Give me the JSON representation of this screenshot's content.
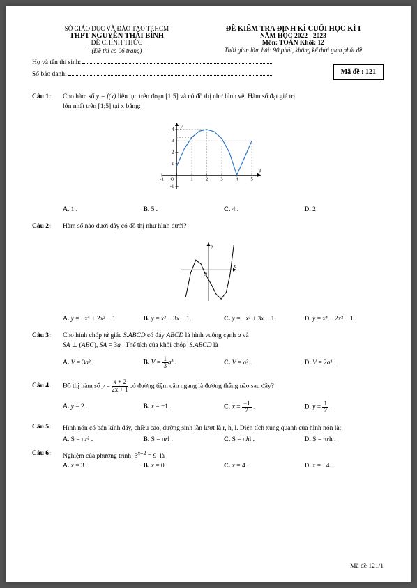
{
  "header": {
    "dept": "SỞ GIÁO DỤC VÀ ĐÀO TẠO TP.HCM",
    "school": "THPT NGUYỄN THÁI BÌNH",
    "official": "ĐỀ CHÍNH THỨC",
    "pages_note": "(Đề thi có 06 trang)",
    "exam_title": "ĐỀ KIỂM TRA ĐỊNH KÌ CUỐI HỌC KÌ I",
    "year": "NĂM HỌC 2022 - 2023",
    "subject": "Môn:  TOÁN   Khối: 12",
    "duration": "Thời gian làm bài:  90 phút, không kể thời gian phát đề",
    "name_label": "Họ và tên thí sinh:",
    "id_label": "Số báo danh:",
    "code_label": "Mã đề : 121"
  },
  "questions": [
    {
      "label": "Câu 1:",
      "text1": "Cho hàm số ",
      "math1": "y = f(x)",
      "text2": " liên tục trên đoạn ",
      "math2": "[1;5]",
      "text3": " và có đồ thị như hình vẽ. Hàm số đạt giá trị",
      "line2a": "lớn nhất trên ",
      "line2b": "[1;5]",
      "line2c": " tại x bằng:",
      "choices": [
        "A. 1 .",
        "B. 5 .",
        "C. 4 .",
        "D. 2"
      ],
      "chart": {
        "bg": "#ffffff",
        "axis_color": "#000000",
        "curve_color": "#1f6fc4",
        "line_color": "#1f6fc4",
        "dash_color": "#888888",
        "xrange": [
          -1,
          5.6
        ],
        "yrange": [
          -1.2,
          4.6
        ],
        "xticks": [
          -1,
          0,
          1,
          2,
          3,
          4,
          5
        ],
        "yticks": [
          -1,
          1,
          2,
          3,
          4
        ],
        "curve_pts": [
          [
            0,
            0.8
          ],
          [
            0.5,
            2.3
          ],
          [
            1,
            3.3
          ],
          [
            1.5,
            3.85
          ],
          [
            2,
            4
          ],
          [
            2.5,
            3.8
          ],
          [
            3,
            3.2
          ],
          [
            3.5,
            2
          ],
          [
            4,
            0
          ]
        ],
        "line_seg": [
          [
            4,
            0
          ],
          [
            5,
            3
          ]
        ],
        "dashes": [
          [
            [
              1,
              0
            ],
            [
              1,
              3.3
            ]
          ],
          [
            [
              1,
              3.3
            ],
            [
              0,
              3.3
            ]
          ],
          [
            [
              2,
              0
            ],
            [
              2,
              4
            ]
          ],
          [
            [
              2,
              4
            ],
            [
              0,
              4
            ]
          ],
          [
            [
              3,
              0
            ],
            [
              3,
              3.2
            ]
          ],
          [
            [
              5,
              0
            ],
            [
              5,
              3
            ]
          ],
          [
            [
              5,
              3
            ],
            [
              0,
              3
            ]
          ]
        ],
        "labels": {
          "x": "x̄",
          "y": "y",
          "O_pos": [
            0,
            0
          ]
        }
      }
    },
    {
      "label": "Câu 2:",
      "text1": "Hàm số nào dưới đây có đồ thị như hình dưới?",
      "choices": [
        "A. y = −x⁴ + 2x² − 1.",
        "B. y = x³ − 3x − 1.",
        "C. y = −x³ + 3x − 1.",
        "D. y = x⁴ − 2x² − 1."
      ],
      "chart": {
        "axis_color": "#000000",
        "curve_color": "#000000",
        "xrange": [
          -2.2,
          2.2
        ],
        "yrange": [
          -3.2,
          2.8
        ],
        "curve_pts": [
          [
            -1.8,
            -2.8
          ],
          [
            -1.4,
            -0.3
          ],
          [
            -1,
            1
          ],
          [
            -0.6,
            0.6
          ],
          [
            -0.3,
            -0.3
          ],
          [
            0,
            -1
          ],
          [
            0.3,
            -1.7
          ],
          [
            0.6,
            -2.5
          ],
          [
            1,
            -3
          ],
          [
            1.4,
            -2.3
          ],
          [
            1.7,
            -0.5
          ],
          [
            2,
            2.6
          ]
        ],
        "labels": {
          "x": "x̄",
          "y": "y",
          "O": "O"
        }
      }
    },
    {
      "label": "Câu 3:",
      "text1": "Cho  hình  chóp  tứ  giác  ",
      "ital1": "S.ABCD",
      "text2": "  có  đáy  ",
      "ital2": "ABCD",
      "text3": "  là  hình  vuông  cạnh  ",
      "ital3": "a",
      "text4": "  và",
      "line2": "SA ⊥ (ABC), SA = 3a . Thể tích của khối chóp  S.ABCD là",
      "choices": [
        "A. V = 3a³ .",
        "B. V = (1/3)a³ .",
        "C. V = a³ .",
        "D. V = 2a³ ."
      ],
      "choice_b_html": "V = <span class='frac'><span>1</span><span>3</span></span>a³ ."
    },
    {
      "label": "Câu 4:",
      "text1": "Đồ thị hàm số ",
      "frac": {
        "num": "x + 2",
        "den": "2x + 1"
      },
      "text2": " có đường tiệm cận ngang là đường thẳng nào sau đây?",
      "choices": [
        "A. y = 2 .",
        "B. x = −1 .",
        "C. x = −1/2 .",
        "D. y = 1/2 ."
      ]
    },
    {
      "label": "Câu 5:",
      "text1": "Hình nón có bán kính đáy, chiều cao, đường sinh lần lượt là r, h, l. Diện tích xung quanh của hình nón là:",
      "choices": [
        "A. S = πr² .",
        "B. S = πrl .",
        "C. S = πhl .",
        "D. S = πrh ."
      ]
    },
    {
      "label": "Câu 6:",
      "text1": "Nghiệm của phương trình  3ˣ⁺² = 9  là",
      "choices": [
        "A. x = 3 .",
        "B. x = 0 .",
        "C. x = 4 .",
        "D. x = −4 ."
      ]
    }
  ],
  "footer": "Mã đề 121/1"
}
